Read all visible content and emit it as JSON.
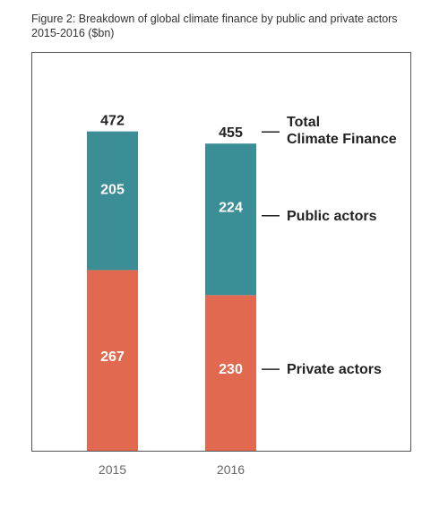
{
  "caption": "Figure 2: Breakdown of global climate finance by public and private actors 2015-2016 ($bn)",
  "chart_data": {
    "type": "bar",
    "stacked": true,
    "title": "Figure 2: Breakdown of global climate finance by public and private actors 2015-2016 ($bn)",
    "categories": [
      "2015",
      "2016"
    ],
    "series": [
      {
        "name": "Private actors",
        "values": [
          267,
          230
        ],
        "color": "#e0694f"
      },
      {
        "name": "Public actors",
        "values": [
          205,
          224
        ],
        "color": "#3b8d96"
      }
    ],
    "totals": [
      472,
      455
    ],
    "total_label": "Total Climate Finance",
    "total_label_lines": [
      "Total",
      "Climate Finance"
    ],
    "label_text_color": "#ffffff",
    "total_text_color": "#222222",
    "tick_color": "#666666",
    "grid": false,
    "legend": "right, as annotations"
  }
}
